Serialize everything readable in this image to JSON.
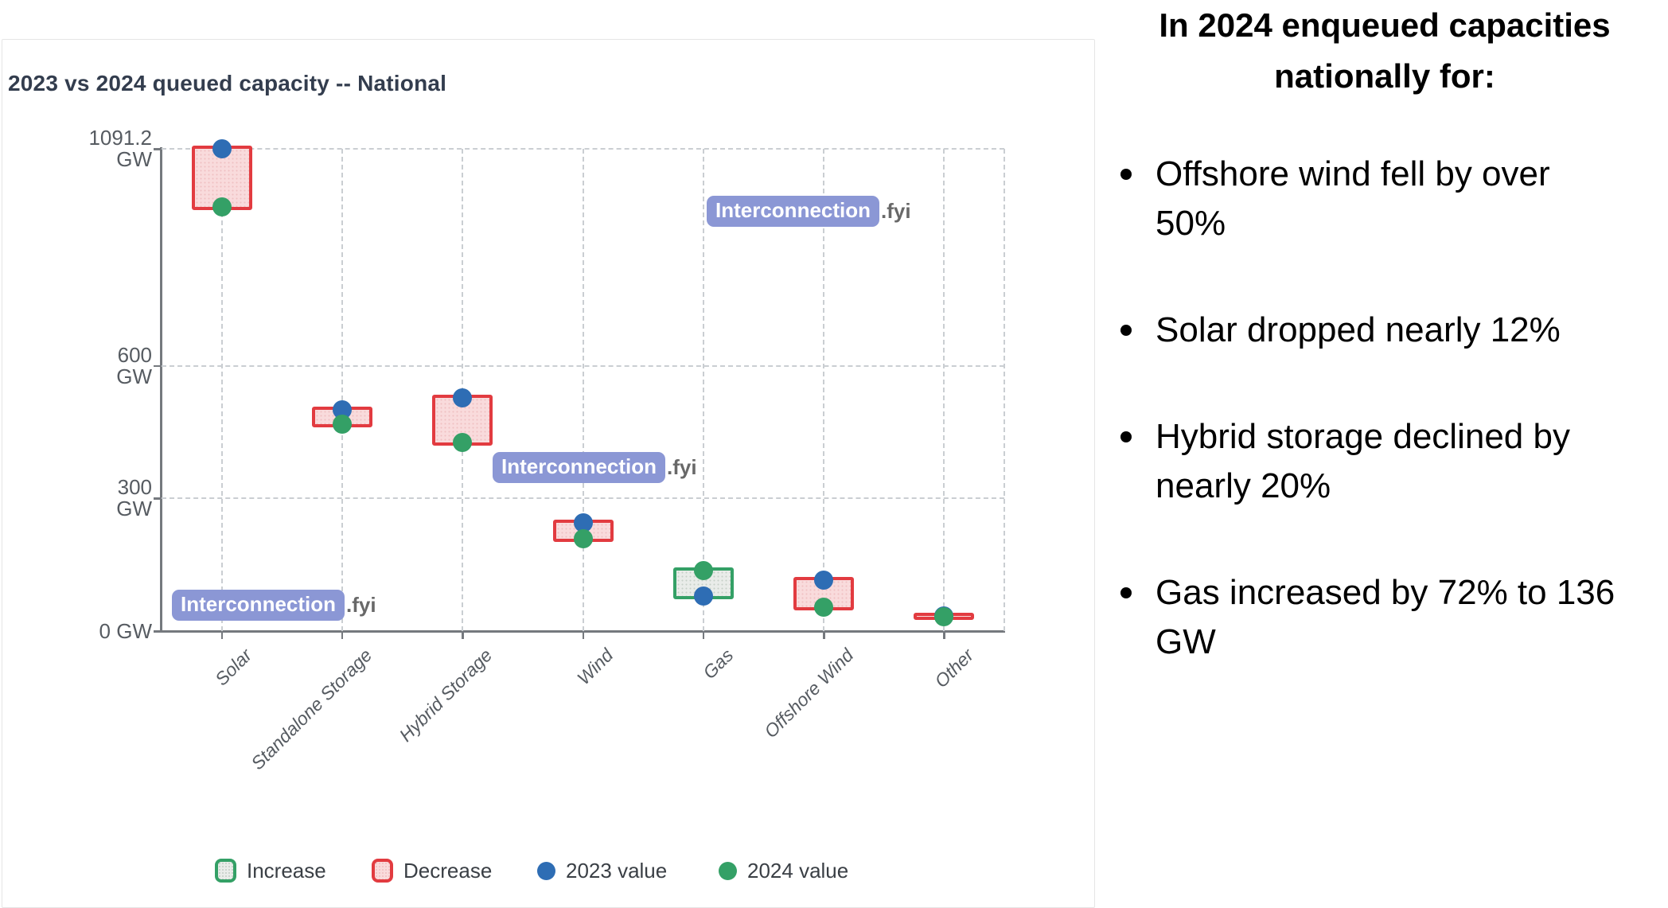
{
  "chart": {
    "title": "2023 vs 2024 queued capacity -- National",
    "watermark": {
      "brand": "Interconnection",
      "suffix": ".fyi"
    }
  },
  "chart_data": {
    "type": "range-dumbbell",
    "title": "2023 vs 2024 queued capacity -- National",
    "unit": "GW",
    "categories": [
      "Solar",
      "Standalone Storage",
      "Hybrid Storage",
      "Wind",
      "Gas",
      "Offshore Wind",
      "Other"
    ],
    "series": [
      {
        "name": "2023 value",
        "values": [
          1091.2,
          500,
          528,
          245,
          79,
          115,
          35
        ]
      },
      {
        "name": "2024 value",
        "values": [
          960,
          468,
          427,
          209,
          136,
          54,
          33
        ]
      }
    ],
    "change_direction": [
      "decrease",
      "decrease",
      "decrease",
      "decrease",
      "increase",
      "decrease",
      "decrease"
    ],
    "y_ticks": [
      {
        "value": 1091.2,
        "label_lines": [
          "1091.2",
          "GW"
        ]
      },
      {
        "value": 600,
        "label_lines": [
          "600",
          "GW"
        ]
      },
      {
        "value": 300,
        "label_lines": [
          "300",
          "GW"
        ]
      },
      {
        "value": 0,
        "label_lines": [
          "0 GW"
        ]
      }
    ],
    "ylim": [
      0,
      1091.2
    ],
    "grid": true,
    "legend_position": "bottom",
    "legend": [
      {
        "type": "increase-box",
        "label": "Increase"
      },
      {
        "type": "decrease-box",
        "label": "Decrease"
      },
      {
        "type": "dot-2023",
        "label": "2023 value"
      },
      {
        "type": "dot-2024",
        "label": "2024 value"
      }
    ],
    "colors": {
      "increase": "#34a066",
      "decrease": "#e23b40",
      "increase_fill": "#e9ece9",
      "decrease_fill": "#f9dbdc",
      "value_2023": "#2e6db4",
      "value_2024": "#34a066",
      "watermark_badge": "#8b97d5"
    }
  },
  "panel": {
    "heading": "In 2024 enqueued capacities nationally for:",
    "bullets": [
      "Offshore wind fell by over 50%",
      "Solar dropped nearly 12%",
      "Hybrid storage declined by nearly 20%",
      "Gas increased by 72% to 136 GW"
    ]
  }
}
